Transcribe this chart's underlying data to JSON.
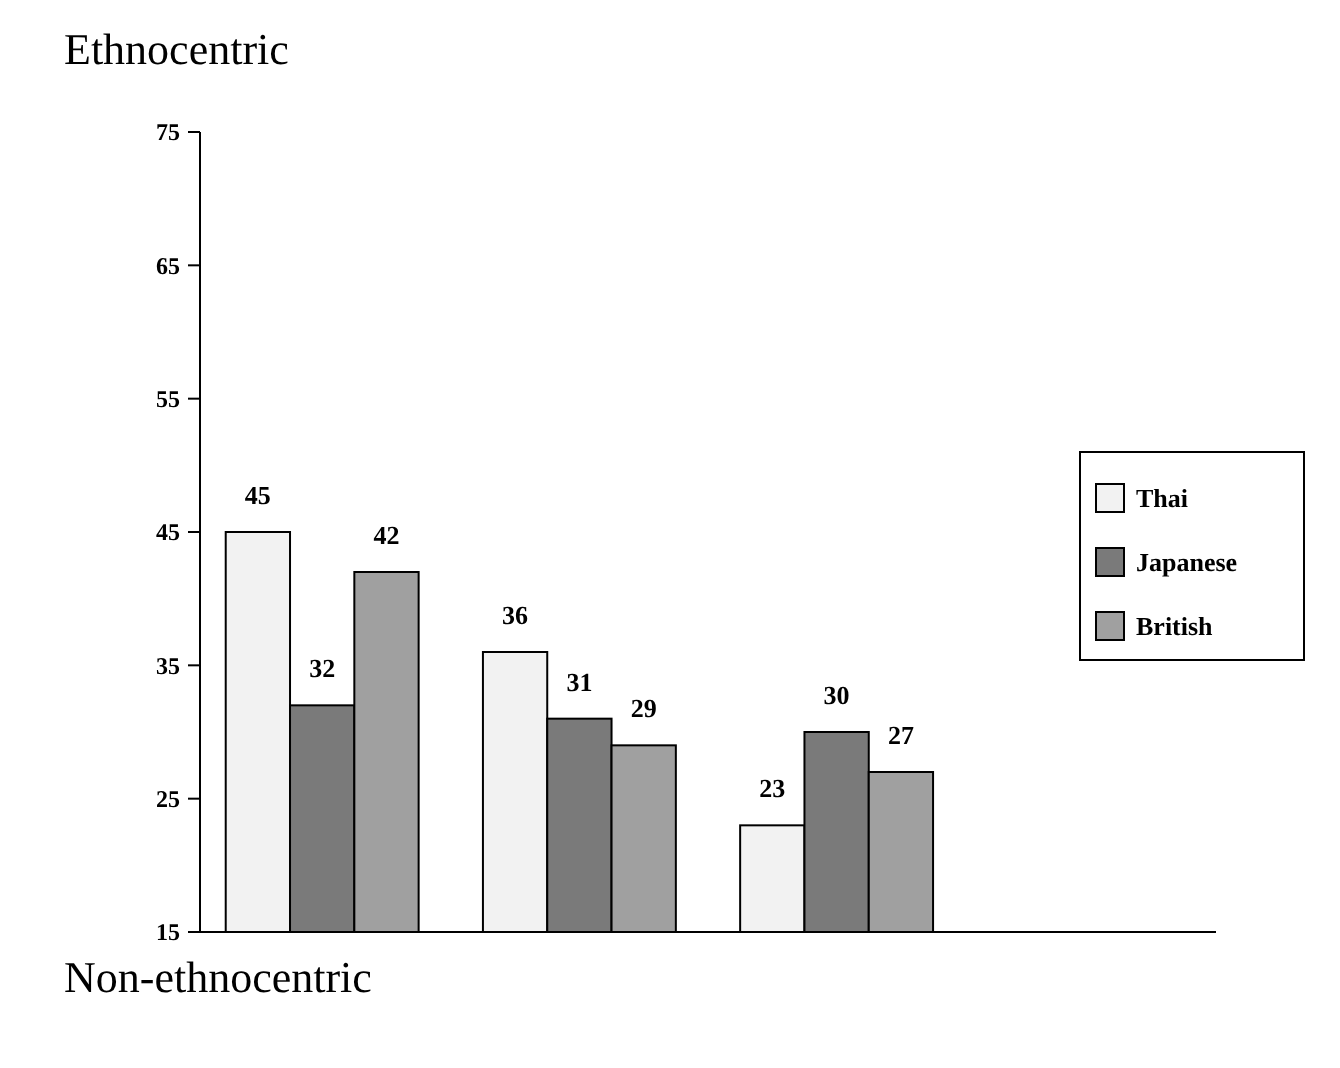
{
  "chart_data": {
    "type": "bar",
    "categories": [
      null,
      null,
      null
    ],
    "series": [
      {
        "name": "Thai",
        "color": "#f2f2f2",
        "values": [
          45,
          36,
          23
        ]
      },
      {
        "name": "Japanese",
        "color": "#7a7a7a",
        "values": [
          32,
          31,
          30
        ]
      },
      {
        "name": "British",
        "color": "#a0a0a0",
        "values": [
          42,
          29,
          27
        ]
      }
    ],
    "ylim": [
      15,
      75
    ],
    "yticks": [
      15,
      25,
      35,
      45,
      55,
      65,
      75
    ],
    "data_labels": true,
    "legend": "right",
    "grid": false,
    "annotations": [
      "Ethnocentric",
      "Non-ethnocentric"
    ]
  }
}
